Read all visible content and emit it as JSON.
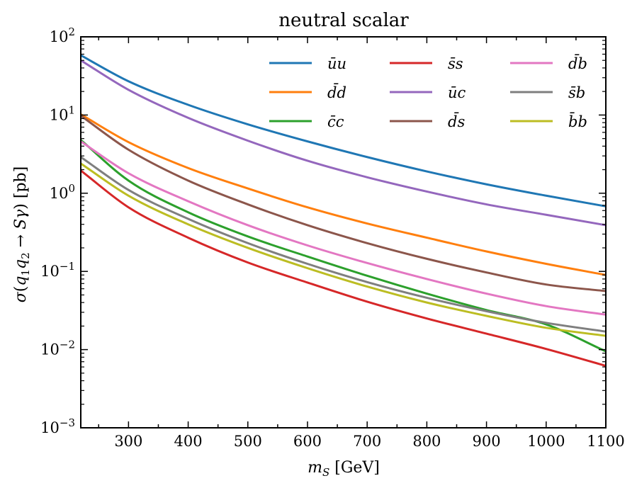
{
  "chart_data": {
    "type": "line",
    "title": "neutral scalar",
    "xlabel": "m_S [GeV]",
    "ylabel": "σ(q₁q₂ → Sγ) [pb]",
    "xscale": "linear",
    "yscale": "log",
    "xlim": [
      220,
      1100
    ],
    "ylim": [
      0.001,
      100
    ],
    "x_ticks": [
      300,
      400,
      500,
      600,
      700,
      800,
      900,
      1000,
      1100
    ],
    "x_tick_labels": [
      "300",
      "400",
      "500",
      "600",
      "700",
      "800",
      "900",
      "1000",
      "1100"
    ],
    "y_ticks": [
      0.001,
      0.01,
      0.1,
      1,
      10,
      100
    ],
    "y_tick_labels": [
      {
        "base": "10",
        "exp": "−3"
      },
      {
        "base": "10",
        "exp": "−2"
      },
      {
        "base": "10",
        "exp": "−1"
      },
      {
        "base": "10",
        "exp": "0"
      },
      {
        "base": "10",
        "exp": "1"
      },
      {
        "base": "10",
        "exp": "2"
      }
    ],
    "legend_position": "top-right",
    "x": [
      220,
      300,
      400,
      500,
      600,
      700,
      800,
      900,
      1000,
      1100
    ],
    "series": [
      {
        "name": "ūu",
        "color": "#1f77b4",
        "values": [
          58,
          27,
          13.5,
          7.6,
          4.6,
          2.9,
          1.9,
          1.3,
          0.93,
          0.68
        ]
      },
      {
        "name": "d̄d",
        "color": "#ff7f0e",
        "values": [
          10.2,
          4.5,
          2.1,
          1.15,
          0.66,
          0.41,
          0.27,
          0.18,
          0.125,
          0.09
        ]
      },
      {
        "name": "c̄c",
        "color": "#2ca02c",
        "values": [
          4.8,
          1.45,
          0.57,
          0.28,
          0.155,
          0.088,
          0.052,
          0.032,
          0.021,
          0.0095
        ]
      },
      {
        "name": "s̄s",
        "color": "#d62728",
        "values": [
          1.95,
          0.66,
          0.27,
          0.13,
          0.072,
          0.041,
          0.025,
          0.016,
          0.0102,
          0.0062
        ]
      },
      {
        "name": "ūc",
        "color": "#9467bd",
        "values": [
          50,
          21,
          9.2,
          4.7,
          2.6,
          1.6,
          1.05,
          0.72,
          0.53,
          0.39
        ]
      },
      {
        "name": "d̄s",
        "color": "#8c564b",
        "values": [
          9.8,
          3.6,
          1.45,
          0.72,
          0.39,
          0.23,
          0.145,
          0.097,
          0.068,
          0.056
        ]
      },
      {
        "name": "d̄b",
        "color": "#e377c2",
        "values": [
          4.6,
          1.8,
          0.79,
          0.39,
          0.215,
          0.128,
          0.08,
          0.052,
          0.036,
          0.028
        ]
      },
      {
        "name": "s̄b",
        "color": "#7f7f7f",
        "values": [
          2.9,
          1.1,
          0.47,
          0.23,
          0.125,
          0.073,
          0.046,
          0.031,
          0.022,
          0.017
        ]
      },
      {
        "name": "b̄b",
        "color": "#bcbd22",
        "values": [
          2.4,
          0.93,
          0.4,
          0.2,
          0.11,
          0.064,
          0.04,
          0.027,
          0.019,
          0.015
        ]
      }
    ]
  }
}
